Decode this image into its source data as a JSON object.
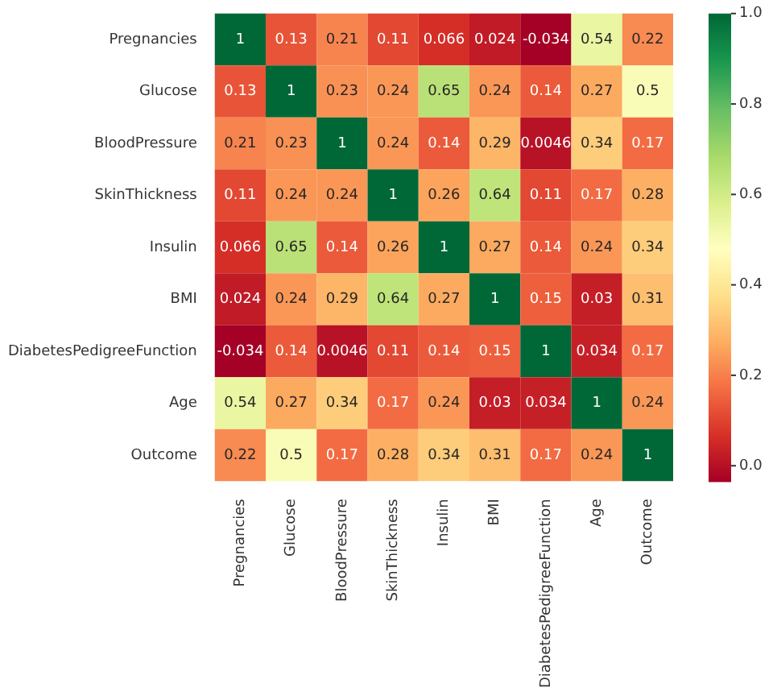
{
  "chart_data": {
    "type": "heatmap",
    "categories": [
      "Pregnancies",
      "Glucose",
      "BloodPressure",
      "SkinThickness",
      "Insulin",
      "BMI",
      "DiabetesPedigreeFunction",
      "Age",
      "Outcome"
    ],
    "y_categories": [
      "Pregnancies",
      "Glucose",
      "BloodPressure",
      "SkinThickness",
      "Insulin",
      "BMI",
      "DiabetesPedigreeFunction",
      "Age",
      "Outcome"
    ],
    "cells": [
      [
        1,
        0.13,
        0.21,
        0.11,
        0.066,
        0.024,
        -0.034,
        0.54,
        0.22
      ],
      [
        0.13,
        1,
        0.23,
        0.24,
        0.65,
        0.24,
        0.14,
        0.27,
        0.5
      ],
      [
        0.21,
        0.23,
        1,
        0.24,
        0.14,
        0.29,
        0.0046,
        0.34,
        0.17
      ],
      [
        0.11,
        0.24,
        0.24,
        1,
        0.26,
        0.64,
        0.11,
        0.17,
        0.28
      ],
      [
        0.066,
        0.65,
        0.14,
        0.26,
        1,
        0.27,
        0.14,
        0.24,
        0.34
      ],
      [
        0.024,
        0.24,
        0.29,
        0.64,
        0.27,
        1,
        0.15,
        0.03,
        0.31
      ],
      [
        -0.034,
        0.14,
        0.0046,
        0.11,
        0.14,
        0.15,
        1,
        0.034,
        0.17
      ],
      [
        0.54,
        0.27,
        0.34,
        0.17,
        0.24,
        0.03,
        0.034,
        1,
        0.24
      ],
      [
        0.22,
        0.5,
        0.17,
        0.28,
        0.34,
        0.31,
        0.17,
        0.24,
        1
      ]
    ],
    "clim": [
      -0.034,
      1
    ],
    "cticks": [
      {
        "value": 0,
        "label": "0.0"
      },
      {
        "value": 0.2,
        "label": "0.2"
      },
      {
        "value": 0.4,
        "label": "0.4"
      },
      {
        "value": 0.6,
        "label": "0.6"
      },
      {
        "value": 0.8,
        "label": "0.8"
      },
      {
        "value": 1,
        "label": "1.0"
      }
    ],
    "data_labels": true
  }
}
